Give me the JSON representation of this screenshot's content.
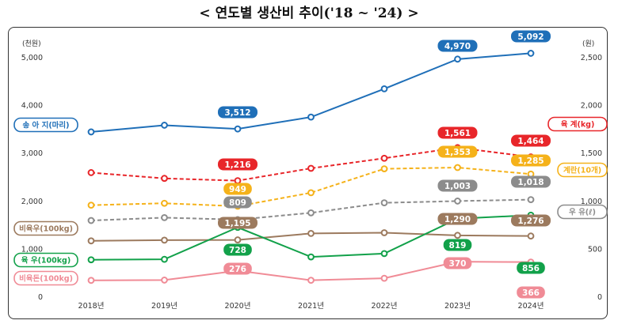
{
  "title": "< 연도별 생산비 추이('18 ~ '24) >",
  "chart_data": {
    "type": "line",
    "x": [
      "2018년",
      "2019년",
      "2020년",
      "2021년",
      "2022년",
      "2023년",
      "2024년"
    ],
    "y_left": {
      "unit": "(천원)",
      "range": [
        0,
        5000
      ],
      "ticks": [
        "0",
        "1,000",
        "2,000",
        "3,000",
        "4,000",
        "5,000"
      ]
    },
    "y_right": {
      "unit": "(원)",
      "range": [
        0,
        2500
      ],
      "ticks": [
        "0",
        "500",
        "1,000",
        "1,500",
        "2,000",
        "2,500"
      ]
    },
    "grid": false,
    "series": [
      {
        "name": "송 아 지(마리)",
        "axis": "left",
        "style": "solid",
        "color": "#1f6fb8",
        "values": [
          3450,
          3590,
          3512,
          3760,
          4350,
          4970,
          5092
        ],
        "labels": [
          null,
          null,
          "3,512",
          null,
          null,
          "4,970",
          "5,092"
        ]
      },
      {
        "name": "육 계(kg)",
        "axis": "right",
        "style": "dashed",
        "color": "#e8262a",
        "values": [
          1300,
          1240,
          1216,
          1345,
          1450,
          1561,
          1464
        ],
        "labels": [
          null,
          null,
          "1,216",
          null,
          null,
          "1,561",
          "1,464"
        ]
      },
      {
        "name": "계란(10개)",
        "axis": "right",
        "style": "dashed",
        "color": "#f5b21a",
        "values": [
          960,
          980,
          949,
          1090,
          1340,
          1353,
          1285
        ],
        "labels": [
          null,
          null,
          "949",
          null,
          null,
          "1,353",
          "1,285"
        ]
      },
      {
        "name": "우 유(ℓ)",
        "axis": "right",
        "style": "dashed",
        "color": "#8c8c8c",
        "values": [
          800,
          830,
          809,
          880,
          985,
          1003,
          1018
        ],
        "labels": [
          null,
          null,
          "809",
          null,
          null,
          "1,003",
          "1,018"
        ]
      },
      {
        "name": "비육우(100kg)",
        "axis": "left",
        "style": "solid",
        "color": "#9c7a5e",
        "values": [
          1175,
          1190,
          1195,
          1330,
          1345,
          1290,
          1276
        ],
        "labels": [
          null,
          null,
          "1,195",
          null,
          null,
          "1,290",
          "1,276"
        ]
      },
      {
        "name": "육 우(100kg)",
        "axis": "right",
        "style": "solid",
        "color": "#12a14a",
        "values": [
          390,
          395,
          728,
          420,
          455,
          819,
          856
        ],
        "labels": [
          null,
          null,
          "728",
          null,
          null,
          "819",
          "856"
        ]
      },
      {
        "name": "비육돈(100kg)",
        "axis": "right",
        "style": "solid",
        "color": "#f08b96",
        "values": [
          175,
          178,
          276,
          176,
          197,
          370,
          366
        ],
        "labels": [
          null,
          null,
          "276",
          null,
          null,
          "370",
          "366"
        ]
      }
    ]
  }
}
